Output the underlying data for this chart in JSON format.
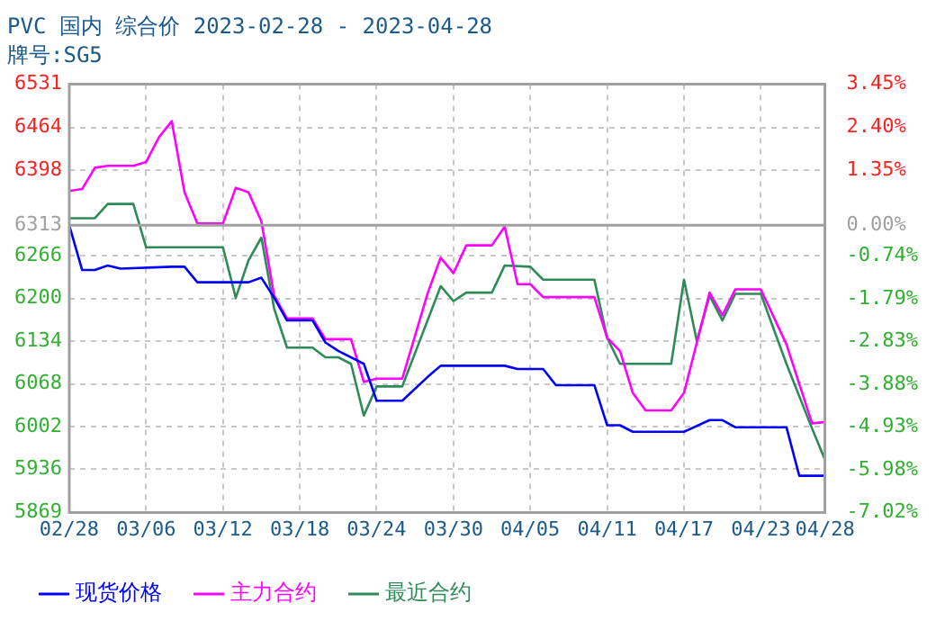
{
  "chart_data": {
    "type": "line",
    "title": "PVC 国内 综合价 2023-02-28 - 2023-04-28",
    "subtitle": "牌号:SG5",
    "xlim": [
      "2023-02-28",
      "2023-04-28"
    ],
    "xticks": [
      {
        "value": "2023-02-28",
        "label": "02/28"
      },
      {
        "value": "2023-03-06",
        "label": "03/06"
      },
      {
        "value": "2023-03-12",
        "label": "03/12"
      },
      {
        "value": "2023-03-18",
        "label": "03/18"
      },
      {
        "value": "2023-03-24",
        "label": "03/24"
      },
      {
        "value": "2023-03-30",
        "label": "03/30"
      },
      {
        "value": "2023-04-05",
        "label": "04/05"
      },
      {
        "value": "2023-04-11",
        "label": "04/11"
      },
      {
        "value": "2023-04-17",
        "label": "04/17"
      },
      {
        "value": "2023-04-23",
        "label": "04/23"
      },
      {
        "value": "2023-04-28",
        "label": "04/28"
      }
    ],
    "ylim": [
      5869,
      6531
    ],
    "yticks": [
      5869,
      5936,
      6002,
      6068,
      6134,
      6200,
      6266,
      6313,
      6398,
      6464,
      6531
    ],
    "y2lim": [
      -7.02,
      3.45
    ],
    "y2ticks": [
      {
        "value": -7.02,
        "label": "-7.02%"
      },
      {
        "value": -5.98,
        "label": "-5.98%"
      },
      {
        "value": -4.93,
        "label": "-4.93%"
      },
      {
        "value": -3.88,
        "label": "-3.88%"
      },
      {
        "value": -2.83,
        "label": "-2.83%"
      },
      {
        "value": -1.79,
        "label": "-1.79%"
      },
      {
        "value": -0.74,
        "label": "-0.74%"
      },
      {
        "value": 0,
        "label": "0.00%"
      },
      {
        "value": 1.35,
        "label": "1.35%"
      },
      {
        "value": 2.4,
        "label": "2.40%"
      },
      {
        "value": 3.45,
        "label": "3.45%"
      }
    ],
    "ref_lines": [
      {
        "axis": "y",
        "value": 6313,
        "color": "#a0a0a0"
      }
    ],
    "grid": true,
    "legend": "bottom",
    "marker": "none",
    "line_style": "solid",
    "series": [
      {
        "name": "现货价格",
        "color": "#0000ff",
        "x": [
          "2023-02-28",
          "2023-03-01",
          "2023-03-02",
          "2023-03-03",
          "2023-03-04",
          "2023-03-08",
          "2023-03-09",
          "2023-03-10",
          "2023-03-14",
          "2023-03-15",
          "2023-03-16",
          "2023-03-17",
          "2023-03-19",
          "2023-03-20",
          "2023-03-21",
          "2023-03-23",
          "2023-03-24",
          "2023-03-26",
          "2023-03-28",
          "2023-03-29",
          "2023-04-03",
          "2023-04-04",
          "2023-04-06",
          "2023-04-07",
          "2023-04-10",
          "2023-04-11",
          "2023-04-12",
          "2023-04-13",
          "2023-04-17",
          "2023-04-19",
          "2023-04-20",
          "2023-04-21",
          "2023-04-25",
          "2023-04-26",
          "2023-04-28"
        ],
        "values": [
          6313,
          6244,
          6244,
          6251,
          6246,
          6249,
          6249,
          6225,
          6225,
          6232,
          6201,
          6166,
          6166,
          6132,
          6119,
          6099,
          6042,
          6042,
          6079,
          6096,
          6096,
          6091,
          6091,
          6066,
          6066,
          6004,
          6004,
          5994,
          5994,
          6012,
          6012,
          6001,
          6001,
          5926,
          5926
        ]
      },
      {
        "name": "主力合约",
        "color": "#ff00ff",
        "x": [
          "2023-02-28",
          "2023-03-01",
          "2023-03-02",
          "2023-03-03",
          "2023-03-05",
          "2023-03-06",
          "2023-03-07",
          "2023-03-08",
          "2023-03-09",
          "2023-03-10",
          "2023-03-12",
          "2023-03-13",
          "2023-03-14",
          "2023-03-15",
          "2023-03-16",
          "2023-03-17",
          "2023-03-19",
          "2023-03-20",
          "2023-03-22",
          "2023-03-23",
          "2023-03-24",
          "2023-03-26",
          "2023-03-28",
          "2023-03-29",
          "2023-03-30",
          "2023-03-31",
          "2023-04-02",
          "2023-04-03",
          "2023-04-04",
          "2023-04-05",
          "2023-04-06",
          "2023-04-10",
          "2023-04-11",
          "2023-04-12",
          "2023-04-13",
          "2023-04-14",
          "2023-04-16",
          "2023-04-17",
          "2023-04-19",
          "2023-04-20",
          "2023-04-21",
          "2023-04-23",
          "2023-04-25",
          "2023-04-27",
          "2023-04-28"
        ],
        "values": [
          6366,
          6369,
          6402,
          6405,
          6405,
          6411,
          6449,
          6474,
          6364,
          6316,
          6316,
          6371,
          6364,
          6319,
          6204,
          6169,
          6169,
          6137,
          6137,
          6071,
          6076,
          6076,
          6209,
          6263,
          6239,
          6282,
          6282,
          6311,
          6222,
          6222,
          6202,
          6202,
          6139,
          6119,
          6054,
          6027,
          6027,
          6054,
          6209,
          6174,
          6214,
          6214,
          6129,
          6007,
          6009
        ]
      },
      {
        "name": "最近合约",
        "color": "#2e8b57",
        "x": [
          "2023-02-28",
          "2023-03-02",
          "2023-03-03",
          "2023-03-05",
          "2023-03-06",
          "2023-03-12",
          "2023-03-13",
          "2023-03-14",
          "2023-03-15",
          "2023-03-16",
          "2023-03-17",
          "2023-03-19",
          "2023-03-20",
          "2023-03-21",
          "2023-03-22",
          "2023-03-23",
          "2023-03-24",
          "2023-03-26",
          "2023-03-29",
          "2023-03-30",
          "2023-03-31",
          "2023-04-02",
          "2023-04-03",
          "2023-04-05",
          "2023-04-06",
          "2023-04-10",
          "2023-04-11",
          "2023-04-12",
          "2023-04-16",
          "2023-04-17",
          "2023-04-18",
          "2023-04-19",
          "2023-04-20",
          "2023-04-21",
          "2023-04-23",
          "2023-04-25",
          "2023-04-27",
          "2023-04-28"
        ],
        "values": [
          6324,
          6324,
          6346,
          6346,
          6279,
          6279,
          6201,
          6259,
          6294,
          6184,
          6124,
          6124,
          6109,
          6109,
          6099,
          6019,
          6064,
          6064,
          6219,
          6196,
          6209,
          6209,
          6251,
          6249,
          6229,
          6229,
          6139,
          6099,
          6099,
          6229,
          6134,
          6204,
          6166,
          6207,
          6207,
          6099,
          5999,
          5951
        ]
      }
    ]
  }
}
